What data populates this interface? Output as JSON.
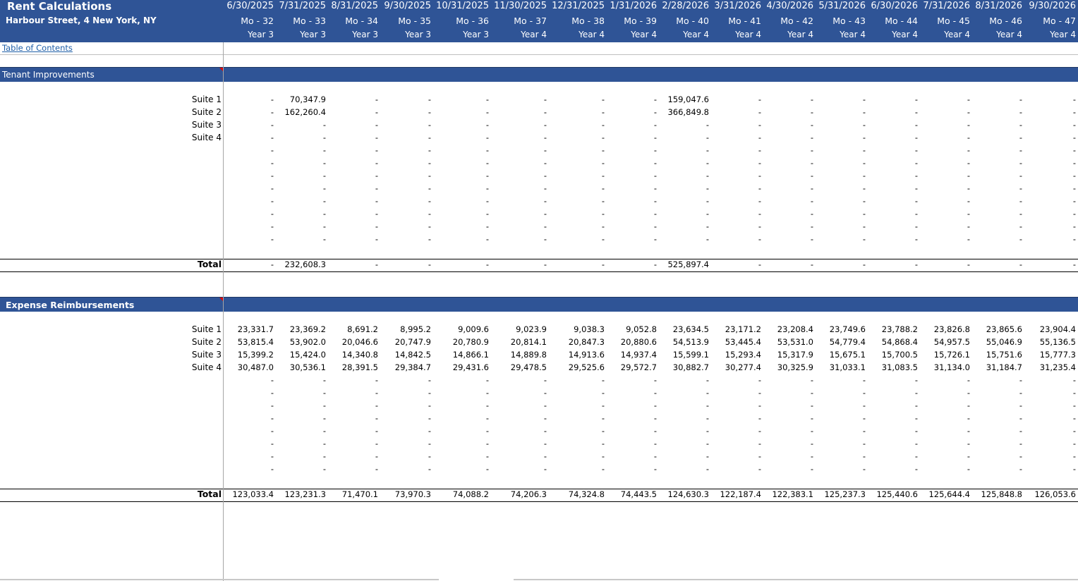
{
  "header": {
    "title": "Rent Calculations",
    "subtitle": "Harbour Street, 4 New York, NY",
    "dates": [
      "6/30/2025",
      "7/31/2025",
      "8/31/2025",
      "9/30/2025",
      "10/31/2025",
      "11/30/2025",
      "12/31/2025",
      "1/31/2026",
      "2/28/2026",
      "3/31/2026",
      "4/30/2026",
      "5/31/2026",
      "6/30/2026",
      "7/31/2026",
      "8/31/2026",
      "9/30/2026"
    ],
    "months": [
      "Mo - 32",
      "Mo - 33",
      "Mo - 34",
      "Mo - 35",
      "Mo - 36",
      "Mo - 37",
      "Mo - 38",
      "Mo - 39",
      "Mo - 40",
      "Mo - 41",
      "Mo - 42",
      "Mo - 43",
      "Mo - 44",
      "Mo - 45",
      "Mo - 46",
      "Mo - 47"
    ],
    "years": [
      "Year 3",
      "Year 3",
      "Year 3",
      "Year 3",
      "Year 3",
      "Year 4",
      "Year 4",
      "Year 4",
      "Year 4",
      "Year 4",
      "Year 4",
      "Year 4",
      "Year 4",
      "Year 4",
      "Year 4",
      "Year 4"
    ]
  },
  "toc_link": "Table of Contents",
  "tenant_improvements": {
    "title": "Tenant Improvements",
    "rows": [
      {
        "label": "Suite 1",
        "values": [
          "-",
          "70,347.9",
          "-",
          "-",
          "-",
          "-",
          "-",
          "-",
          "159,047.6",
          "-",
          "-",
          "-",
          "-",
          "-",
          "-",
          "-"
        ]
      },
      {
        "label": "Suite 2",
        "values": [
          "-",
          "162,260.4",
          "-",
          "-",
          "-",
          "-",
          "-",
          "-",
          "366,849.8",
          "-",
          "-",
          "-",
          "-",
          "-",
          "-",
          "-"
        ]
      },
      {
        "label": "Suite 3",
        "values": [
          "-",
          "-",
          "-",
          "-",
          "-",
          "-",
          "-",
          "-",
          "-",
          "-",
          "-",
          "-",
          "-",
          "-",
          "-",
          "-"
        ]
      },
      {
        "label": "Suite 4",
        "values": [
          "-",
          "-",
          "-",
          "-",
          "-",
          "-",
          "-",
          "-",
          "-",
          "-",
          "-",
          "-",
          "-",
          "-",
          "-",
          "-"
        ]
      },
      {
        "label": "",
        "values": [
          "-",
          "-",
          "-",
          "-",
          "-",
          "-",
          "-",
          "-",
          "-",
          "-",
          "-",
          "-",
          "-",
          "-",
          "-",
          "-"
        ]
      },
      {
        "label": "",
        "values": [
          "-",
          "-",
          "-",
          "-",
          "-",
          "-",
          "-",
          "-",
          "-",
          "-",
          "-",
          "-",
          "-",
          "-",
          "-",
          "-"
        ]
      },
      {
        "label": "",
        "values": [
          "-",
          "-",
          "-",
          "-",
          "-",
          "-",
          "-",
          "-",
          "-",
          "-",
          "-",
          "-",
          "-",
          "-",
          "-",
          "-"
        ]
      },
      {
        "label": "",
        "values": [
          "-",
          "-",
          "-",
          "-",
          "-",
          "-",
          "-",
          "-",
          "-",
          "-",
          "-",
          "-",
          "-",
          "-",
          "-",
          "-"
        ]
      },
      {
        "label": "",
        "values": [
          "-",
          "-",
          "-",
          "-",
          "-",
          "-",
          "-",
          "-",
          "-",
          "-",
          "-",
          "-",
          "-",
          "-",
          "-",
          "-"
        ]
      },
      {
        "label": "",
        "values": [
          "-",
          "-",
          "-",
          "-",
          "-",
          "-",
          "-",
          "-",
          "-",
          "-",
          "-",
          "-",
          "-",
          "-",
          "-",
          "-"
        ]
      },
      {
        "label": "",
        "values": [
          "-",
          "-",
          "-",
          "-",
          "-",
          "-",
          "-",
          "-",
          "-",
          "-",
          "-",
          "-",
          "-",
          "-",
          "-",
          "-"
        ]
      },
      {
        "label": "",
        "values": [
          "-",
          "-",
          "-",
          "-",
          "-",
          "-",
          "-",
          "-",
          "-",
          "-",
          "-",
          "-",
          "-",
          "-",
          "-",
          "-"
        ]
      }
    ],
    "total": {
      "label": "Total",
      "values": [
        "-",
        "232,608.3",
        "-",
        "-",
        "-",
        "-",
        "-",
        "-",
        "525,897.4",
        "-",
        "-",
        "-",
        "-",
        "-",
        "-",
        "-"
      ]
    }
  },
  "expense_reimbursements": {
    "title": "Expense Reimbursements",
    "rows": [
      {
        "label": "Suite 1",
        "values": [
          "23,331.7",
          "23,369.2",
          "8,691.2",
          "8,995.2",
          "9,009.6",
          "9,023.9",
          "9,038.3",
          "9,052.8",
          "23,634.5",
          "23,171.2",
          "23,208.4",
          "23,749.6",
          "23,788.2",
          "23,826.8",
          "23,865.6",
          "23,904.4"
        ]
      },
      {
        "label": "Suite 2",
        "values": [
          "53,815.4",
          "53,902.0",
          "20,046.6",
          "20,747.9",
          "20,780.9",
          "20,814.1",
          "20,847.3",
          "20,880.6",
          "54,513.9",
          "53,445.4",
          "53,531.0",
          "54,779.4",
          "54,868.4",
          "54,957.5",
          "55,046.9",
          "55,136.5"
        ]
      },
      {
        "label": "Suite 3",
        "values": [
          "15,399.2",
          "15,424.0",
          "14,340.8",
          "14,842.5",
          "14,866.1",
          "14,889.8",
          "14,913.6",
          "14,937.4",
          "15,599.1",
          "15,293.4",
          "15,317.9",
          "15,675.1",
          "15,700.5",
          "15,726.1",
          "15,751.6",
          "15,777.3"
        ]
      },
      {
        "label": "Suite 4",
        "values": [
          "30,487.0",
          "30,536.1",
          "28,391.5",
          "29,384.7",
          "29,431.6",
          "29,478.5",
          "29,525.6",
          "29,572.7",
          "30,882.7",
          "30,277.4",
          "30,325.9",
          "31,033.1",
          "31,083.5",
          "31,134.0",
          "31,184.7",
          "31,235.4"
        ]
      },
      {
        "label": "",
        "values": [
          "-",
          "-",
          "-",
          "-",
          "-",
          "-",
          "-",
          "-",
          "-",
          "-",
          "-",
          "-",
          "-",
          "-",
          "-",
          "-"
        ]
      },
      {
        "label": "",
        "values": [
          "-",
          "-",
          "-",
          "-",
          "-",
          "-",
          "-",
          "-",
          "-",
          "-",
          "-",
          "-",
          "-",
          "-",
          "-",
          "-"
        ]
      },
      {
        "label": "",
        "values": [
          "-",
          "-",
          "-",
          "-",
          "-",
          "-",
          "-",
          "-",
          "-",
          "-",
          "-",
          "-",
          "-",
          "-",
          "-",
          "-"
        ]
      },
      {
        "label": "",
        "values": [
          "-",
          "-",
          "-",
          "-",
          "-",
          "-",
          "-",
          "-",
          "-",
          "-",
          "-",
          "-",
          "-",
          "-",
          "-",
          "-"
        ]
      },
      {
        "label": "",
        "values": [
          "-",
          "-",
          "-",
          "-",
          "-",
          "-",
          "-",
          "-",
          "-",
          "-",
          "-",
          "-",
          "-",
          "-",
          "-",
          "-"
        ]
      },
      {
        "label": "",
        "values": [
          "-",
          "-",
          "-",
          "-",
          "-",
          "-",
          "-",
          "-",
          "-",
          "-",
          "-",
          "-",
          "-",
          "-",
          "-",
          "-"
        ]
      },
      {
        "label": "",
        "values": [
          "-",
          "-",
          "-",
          "-",
          "-",
          "-",
          "-",
          "-",
          "-",
          "-",
          "-",
          "-",
          "-",
          "-",
          "-",
          "-"
        ]
      },
      {
        "label": "",
        "values": [
          "-",
          "-",
          "-",
          "-",
          "-",
          "-",
          "-",
          "-",
          "-",
          "-",
          "-",
          "-",
          "-",
          "-",
          "-",
          "-"
        ]
      }
    ],
    "total": {
      "label": "Total",
      "values": [
        "123,033.4",
        "123,231.3",
        "71,470.1",
        "73,970.3",
        "74,088.2",
        "74,206.3",
        "74,324.8",
        "74,443.5",
        "124,630.3",
        "122,187.4",
        "122,383.1",
        "125,237.3",
        "125,440.6",
        "125,644.4",
        "125,848.8",
        "126,053.6"
      ]
    }
  }
}
